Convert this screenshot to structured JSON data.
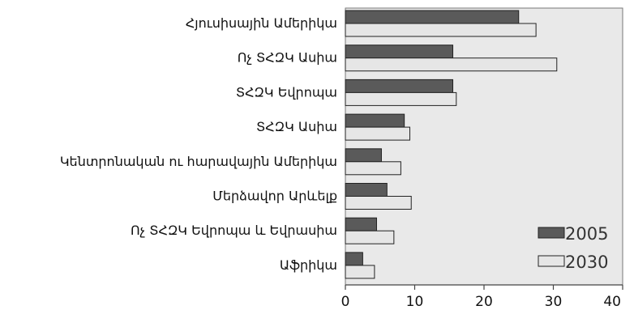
{
  "chart_data": {
    "type": "bar",
    "orientation": "horizontal",
    "categories": [
      "Հյուսիսային Ամերիկա",
      "Ոչ ՏՀԶԿ Ասիա",
      "ՏՀԶԿ Եվրոպա",
      "ՏՀԶԿ Ասիա",
      "Կենտրոնական ու հարավային Ամերիկա",
      "Մերձավոր Արևելք",
      "Ոչ ՏՀԶԿ Եվրոպա և Եվրասիա",
      "Աֆրիկա"
    ],
    "series": [
      {
        "name": "2005",
        "color": "#5a5a5a",
        "values": [
          25,
          15.5,
          15.5,
          8.5,
          5.2,
          6,
          4.5,
          2.5
        ]
      },
      {
        "name": "2030",
        "color": "#e6e6e6",
        "values": [
          27.5,
          30.5,
          16,
          9.3,
          8,
          9.5,
          7,
          4.2
        ]
      }
    ],
    "xticks": [
      "0",
      "10",
      "20",
      "30",
      "40"
    ],
    "xlim": [
      0,
      40
    ],
    "plot_background": "#e9e9e9",
    "legend_position": "bottom-right",
    "grid": false
  }
}
